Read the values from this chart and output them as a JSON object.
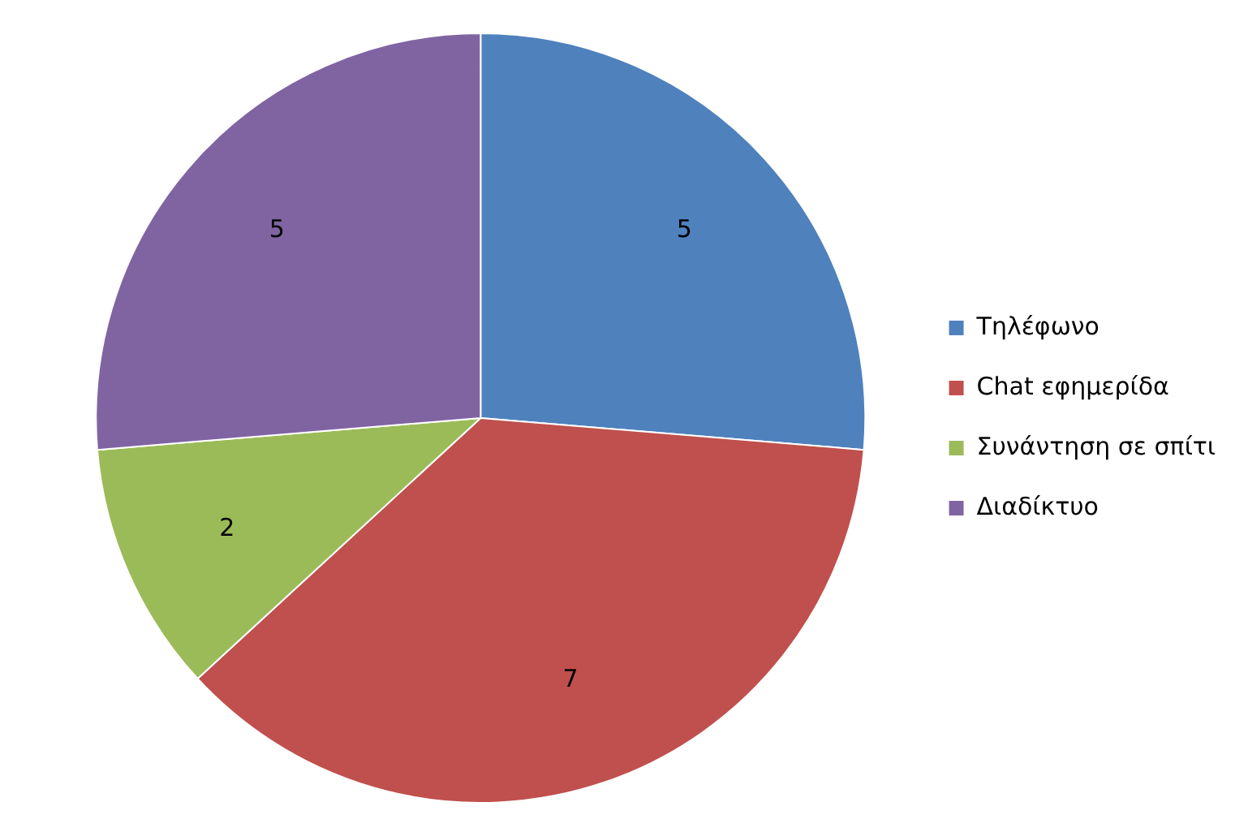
{
  "chart_data": {
    "type": "pie",
    "categories": [
      "Τηλέφωνο",
      "Chat εφημερίδα",
      "Συνάντηση σε σπίτι",
      "Διαδίκτυο"
    ],
    "values": [
      5,
      7,
      2,
      5
    ],
    "colors": [
      "#4f81bd",
      "#c0504d",
      "#9bbb59",
      "#8064a2"
    ],
    "data_labels": true,
    "legend": "right"
  }
}
